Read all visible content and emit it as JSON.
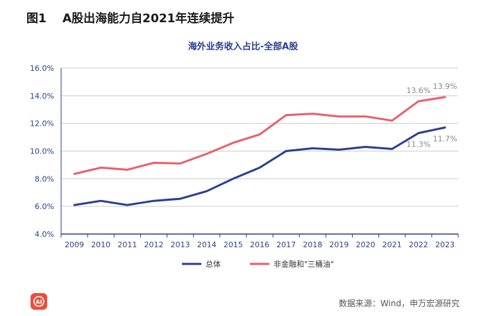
{
  "figure": {
    "label": "图1",
    "title": "A股出海能力自2021年连续提升",
    "source": "数据来源：Wind，申万宏源研究",
    "logo_icon": "ai-logo-icon"
  },
  "colors": {
    "total": "#2b3f8f",
    "nonfin": "#e8606a",
    "axis": "#2b3f8f",
    "grid": "#cccccc",
    "tick": "#2b3f8f",
    "annot": "#888888"
  },
  "chart_data": {
    "type": "line",
    "title": "海外业务收入占比-全部A股",
    "xlabel": "",
    "ylabel": "",
    "categories": [
      "2009",
      "2010",
      "2011",
      "2012",
      "2013",
      "2014",
      "2015",
      "2016",
      "2017",
      "2018",
      "2019",
      "2020",
      "2021",
      "2022",
      "2023"
    ],
    "ylim": [
      4.0,
      16.0
    ],
    "yticks": [
      "4.0%",
      "6.0%",
      "8.0%",
      "10.0%",
      "12.0%",
      "14.0%",
      "16.0%"
    ],
    "series": [
      {
        "name": "总体",
        "values": [
          6.1,
          6.4,
          6.1,
          6.4,
          6.55,
          7.1,
          8.0,
          8.8,
          10.0,
          10.2,
          10.1,
          10.3,
          10.15,
          11.3,
          11.7
        ]
      },
      {
        "name": "非金融和\"三桶油\"",
        "values": [
          8.35,
          8.8,
          8.65,
          9.15,
          9.1,
          9.8,
          10.6,
          11.2,
          12.6,
          12.7,
          12.5,
          12.5,
          12.2,
          13.6,
          13.9
        ]
      }
    ],
    "legend_position": "bottom",
    "annotations": [
      {
        "series": 1,
        "index": 13,
        "text": "13.6%"
      },
      {
        "series": 1,
        "index": 14,
        "text": "13.9%"
      },
      {
        "series": 0,
        "index": 13,
        "text": "11.3%"
      },
      {
        "series": 0,
        "index": 14,
        "text": "11.7%"
      }
    ]
  }
}
